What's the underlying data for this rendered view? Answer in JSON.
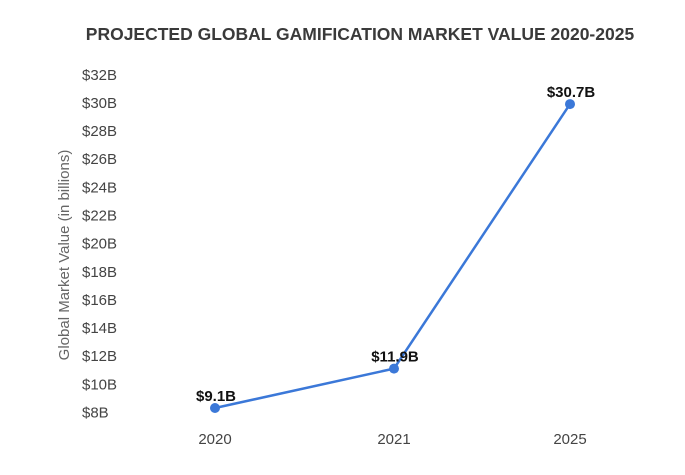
{
  "chart_data": {
    "type": "line",
    "title": "PROJECTED GLOBAL GAMIFICATION MARKET VALUE 2020-2025",
    "xlabel": "",
    "ylabel": "Global Market Value (in billions)",
    "categories": [
      "2020",
      "2021",
      "2025"
    ],
    "values": [
      9.1,
      11.9,
      30.7
    ],
    "data_labels": [
      "$9.1B",
      "$11.9B",
      "$30.7B"
    ],
    "ylim": [
      8,
      32
    ],
    "yticks": [
      8,
      10,
      12,
      14,
      16,
      18,
      20,
      22,
      24,
      26,
      28,
      30,
      32
    ],
    "ytick_labels": [
      "$8B",
      "$10B",
      "$12B",
      "$14B",
      "$16B",
      "$18B",
      "$20B",
      "$22B",
      "$24B",
      "$26B",
      "$28B",
      "$30B",
      "$32B"
    ],
    "grid": false,
    "legend": "none",
    "color": "#3b78d8"
  }
}
